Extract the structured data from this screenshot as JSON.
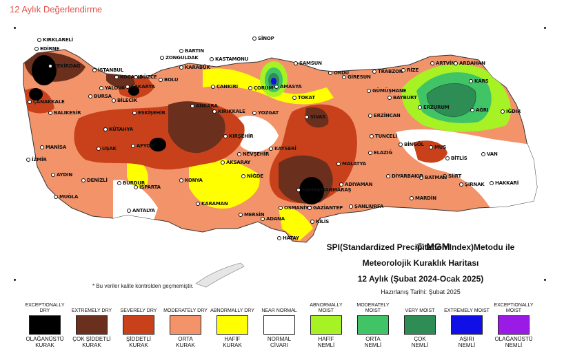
{
  "page": {
    "title": "12 Aylık Değerlendirme"
  },
  "map": {
    "copyright": "© MGM",
    "heading_line1": "SPI(Standardized Precipitation Index)Metodu ile",
    "heading_line2": "Meteorolojik Kuraklık Haritası",
    "heading_line3": "12 Aylık (Şubat 2024-Ocak 2025)",
    "prepared": "Hazırlanış Tarihi: Şubat 2025",
    "note": "* Bu veriler kalite kontrolden geçmemiştir.",
    "colors": {
      "exceptionally_dry": "#000000",
      "extremely_dry": "#6b2f1d",
      "severely_dry": "#c9411b",
      "moderately_dry": "#f2936a",
      "abnormally_dry": "#ffff00",
      "near_normal": "#ffffff",
      "abnormally_moist": "#a6f225",
      "moderately_moist": "#40c465",
      "very_moist": "#2e8c55",
      "extremely_moist": "#1010e6",
      "exceptionally_moist": "#9a1ae6"
    },
    "cities": [
      "KIRKLARELİ",
      "EDİRNE",
      "TEKİRDAĞ",
      "İSTANBUL",
      "ÇANAKKALE",
      "KOCAELİ",
      "SAKARYA",
      "DÜZCE",
      "ZONGULDAK",
      "BARTIN",
      "KARABÜK",
      "BOLU",
      "KASTAMONU",
      "SİNOP",
      "SAMSUN",
      "ORDU",
      "GİRESUN",
      "TRABZON",
      "RİZE",
      "ARTVİN",
      "ARDAHAN",
      "KARS",
      "IĞDIR",
      "AĞRI",
      "ERZURUM",
      "BAYBURT",
      "GÜMÜŞHANE",
      "ERZİNCAN",
      "AMASYA",
      "TOKAT",
      "ÇORUM",
      "ÇANKIRI",
      "ANKARA",
      "KIRIKKALE",
      "YOZGAT",
      "SİVAS",
      "BURSA",
      "BİLECİK",
      "ESKİŞEHİR",
      "BALIKESİR",
      "YALOVA",
      "KÜTAHYA",
      "UŞAK",
      "MANİSA",
      "İZMİR",
      "AYDIN",
      "DENİZLİ",
      "MUĞLA",
      "AFYON",
      "BURDUR",
      "ISPARTA",
      "ANTALYA",
      "KONYA",
      "KARAMAN",
      "MERSİN",
      "ADANA",
      "HATAY",
      "OSMANİYE",
      "KİLİS",
      "GAZİANTEP",
      "ŞANLIURFA",
      "ADIYAMAN",
      "MALATYA",
      "KAHRAMANMARAŞ",
      "KAYSERİ",
      "NEVŞEHİR",
      "KIRŞEHİR",
      "AKSARAY",
      "NİĞDE",
      "TUNCELİ",
      "ELAZIĞ",
      "BİNGÖL",
      "MUŞ",
      "BİTLİS",
      "VAN",
      "HAKKARİ",
      "ŞIRNAK",
      "SİİRT",
      "BATMAN",
      "DİYARBAKIR",
      "MARDİN"
    ]
  },
  "legend": [
    {
      "en": "EXCEPTIONALLY DRY",
      "tr1": "OLAĞANÜSTÜ",
      "tr2": "KURAK",
      "color": "#000000"
    },
    {
      "en": "EXTREMELY DRY",
      "tr1": "ÇOK ŞİDDETLİ",
      "tr2": "KURAK",
      "color": "#6b2f1d"
    },
    {
      "en": "SEVERELY DRY",
      "tr1": "ŞİDDETLİ",
      "tr2": "KURAK",
      "color": "#c9411b"
    },
    {
      "en": "MODERATELY DRY",
      "tr1": "ORTA",
      "tr2": "KURAK",
      "color": "#f2936a"
    },
    {
      "en": "ABNORMALLY DRY",
      "tr1": "HAFİF",
      "tr2": "KURAK",
      "color": "#ffff00"
    },
    {
      "en": "NEAR NORMAL",
      "tr1": "NORMAL",
      "tr2": "CİVARI",
      "color": "#ffffff"
    },
    {
      "en": "ABNORMALLY MOIST",
      "tr1": "HAFİF",
      "tr2": "NEMLİ",
      "color": "#a6f225"
    },
    {
      "en": "MODERATELY MOIST",
      "tr1": "ORTA",
      "tr2": "NEMLİ",
      "color": "#40c465"
    },
    {
      "en": "VERY MOIST",
      "tr1": "ÇOK",
      "tr2": "NEMLİ",
      "color": "#2e8c55"
    },
    {
      "en": "EXTREMELY MOIST",
      "tr1": "AŞIRI",
      "tr2": "NEMLİ",
      "color": "#1010e6"
    },
    {
      "en": "EXCEPTIONALLY MOIST",
      "tr1": "OLAĞANÜSTÜ",
      "tr2": "NEMLİ",
      "color": "#9a1ae6"
    }
  ]
}
